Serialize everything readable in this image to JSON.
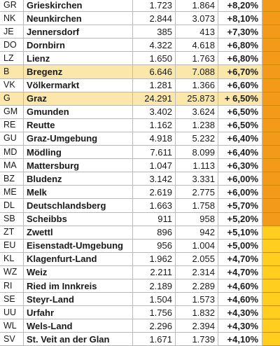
{
  "colors": {
    "highlight": "#fbe7a9",
    "bar_orange": "#f39a1b",
    "bar_yellow": "#ffce1f"
  },
  "rows": [
    {
      "abbr": "GR",
      "name": "Grieskirchen",
      "v1": "1.723",
      "v2": "1.864",
      "pct": "+8,20%",
      "bar": "orange"
    },
    {
      "abbr": "NK",
      "name": "Neunkirchen",
      "v1": "2.844",
      "v2": "3.073",
      "pct": "+8,10%",
      "bar": "orange"
    },
    {
      "abbr": "JE",
      "name": "Jennersdorf",
      "v1": "385",
      "v2": "413",
      "pct": "+7,30%",
      "bar": "orange"
    },
    {
      "abbr": "DO",
      "name": "Dornbirn",
      "v1": "4.322",
      "v2": "4.618",
      "pct": "+6,80%",
      "bar": "orange"
    },
    {
      "abbr": "LZ",
      "name": "Lienz",
      "v1": "1.650",
      "v2": "1.763",
      "pct": "+6,80%",
      "bar": "orange"
    },
    {
      "abbr": "B",
      "name": "Bregenz",
      "v1": "6.646",
      "v2": "7.088",
      "pct": "+6,70%",
      "bar": "orange",
      "highlight": true
    },
    {
      "abbr": "VK",
      "name": "Völkermarkt",
      "v1": "1.281",
      "v2": "1.366",
      "pct": "+6,60%",
      "bar": "orange"
    },
    {
      "abbr": "G",
      "name": "Graz",
      "v1": "24.291",
      "v2": "25.873",
      "pct": "+ 6,50%",
      "bar": "orange",
      "highlight": true
    },
    {
      "abbr": "GM",
      "name": "Gmunden",
      "v1": "3.402",
      "v2": "3.624",
      "pct": "+6,50%",
      "bar": "orange"
    },
    {
      "abbr": "RE",
      "name": "Reutte",
      "v1": "1.162",
      "v2": "1.238",
      "pct": "+6,50%",
      "bar": "orange"
    },
    {
      "abbr": "GU",
      "name": "Graz-Umgebung",
      "v1": "4.918",
      "v2": "5.232",
      "pct": "+6,40%",
      "bar": "orange"
    },
    {
      "abbr": "MD",
      "name": "Mödling",
      "v1": "7.611",
      "v2": "8.099",
      "pct": "+6,40%",
      "bar": "orange"
    },
    {
      "abbr": "MA",
      "name": "Mattersburg",
      "v1": "1.047",
      "v2": "1.113",
      "pct": "+6,30%",
      "bar": "orange"
    },
    {
      "abbr": "BZ",
      "name": "Bludenz",
      "v1": "3.142",
      "v2": "3.331",
      "pct": "+6,00%",
      "bar": "orange"
    },
    {
      "abbr": "ME",
      "name": "Melk",
      "v1": "2.619",
      "v2": "2.775",
      "pct": "+6,00%",
      "bar": "orange"
    },
    {
      "abbr": "DL",
      "name": "Deutschlandsberg",
      "v1": "1.663",
      "v2": "1.758",
      "pct": "+5,70%",
      "bar": "orange"
    },
    {
      "abbr": "SB",
      "name": "Scheibbs",
      "v1": "911",
      "v2": "958",
      "pct": "+5,20%",
      "bar": "orange"
    },
    {
      "abbr": "ZT",
      "name": "Zwettl",
      "v1": "896",
      "v2": "942",
      "pct": "+5,10%",
      "bar": "yellow"
    },
    {
      "abbr": "EU",
      "name": "Eisenstadt-Umgebung",
      "v1": "956",
      "v1b": "",
      "v2": "1.004",
      "pct": "+5,00%",
      "bar": "yellow"
    },
    {
      "abbr": "KL",
      "name": "Klagenfurt-Land",
      "v1": "1.962",
      "v2": "2.055",
      "pct": "+4,70%",
      "bar": "yellow"
    },
    {
      "abbr": "WZ",
      "name": "Weiz",
      "v1": "2.211",
      "v2": "2.314",
      "pct": "+4,70%",
      "bar": "yellow"
    },
    {
      "abbr": "RI",
      "name": "Ried im Innkreis",
      "v1": "2.189",
      "v2": "2.289",
      "pct": "+4,60%",
      "bar": "yellow"
    },
    {
      "abbr": "SE",
      "name": "Steyr-Land",
      "v1": "1.504",
      "v2": "1.573",
      "pct": "+4,60%",
      "bar": "yellow"
    },
    {
      "abbr": "UU",
      "name": "Urfahr",
      "v1": "1.756",
      "v2": "1.832",
      "pct": "+4,30%",
      "bar": "yellow"
    },
    {
      "abbr": "WL",
      "name": "Wels-Land",
      "v1": "2.296",
      "v2": "2.394",
      "pct": "+4,30%",
      "bar": "yellow"
    },
    {
      "abbr": "SV",
      "name": "St. Veit an der Glan",
      "v1": "1.671",
      "v2": "1.739",
      "pct": "+4,10%",
      "bar": "yellow"
    }
  ]
}
